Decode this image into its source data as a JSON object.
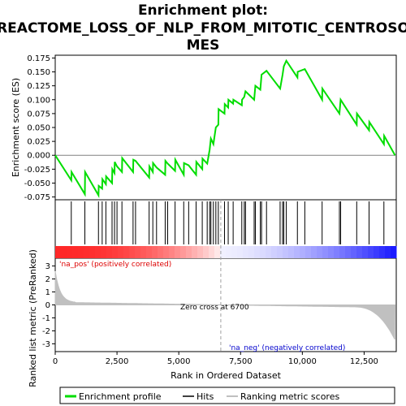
{
  "chart_data": {
    "type": "line",
    "title_lines": [
      "Enrichment plot:",
      "REACTOME_LOSS_OF_NLP_FROM_MITOTIC_CENTROSO",
      "MES"
    ],
    "xlabel": "Rank in Ordered Dataset",
    "ylabel_top": "Enrichment score (ES)",
    "ylabel_bottom": "Ranked list metric (PreRanked)",
    "xlim": [
      0,
      13800
    ],
    "x_ticks": [
      0,
      2500,
      5000,
      7500,
      10000,
      12500
    ],
    "x_tick_labels": [
      "0",
      "2,500",
      "5,000",
      "7,500",
      "10,000",
      "12,500"
    ],
    "es_ylim": [
      -0.08,
      0.18
    ],
    "es_ticks": [
      -0.075,
      -0.05,
      -0.025,
      0.0,
      0.025,
      0.05,
      0.075,
      0.1,
      0.125,
      0.15,
      0.175
    ],
    "es_tick_labels": [
      "-0.075",
      "-0.050",
      "-0.025",
      "0.000",
      "0.025",
      "0.050",
      "0.075",
      "0.100",
      "0.125",
      "0.150",
      "0.175"
    ],
    "metric_ylim": [
      -3.6,
      3.6
    ],
    "metric_ticks": [
      -3,
      -2,
      -1,
      0,
      1,
      2,
      3
    ],
    "metric_tick_labels": [
      "-3",
      "-2",
      "-1",
      "0",
      "1",
      "2",
      "3"
    ],
    "zero_cross": 6700,
    "zero_cross_label": "Zero cross at 6700",
    "pos_label": "'na_pos' (positively correlated)",
    "neg_label": "'na_neg' (negatively correlated)",
    "hits": [
      650,
      1200,
      1750,
      1900,
      2050,
      2300,
      2400,
      2500,
      2700,
      3150,
      3250,
      3800,
      3950,
      4100,
      4450,
      4550,
      4850,
      5200,
      5400,
      5700,
      5950,
      6150,
      6250,
      6300,
      6400,
      6500,
      6600,
      6850,
      7000,
      7200,
      7550,
      7650,
      7700,
      8050,
      8100,
      8300,
      8350,
      8550,
      9100,
      9200,
      9250,
      9350,
      9800,
      10100,
      10800,
      11500,
      11550,
      12200,
      12700,
      13300
    ],
    "es_profile": [
      [
        0,
        0.0
      ],
      [
        650,
        -0.045
      ],
      [
        660,
        -0.03
      ],
      [
        1200,
        -0.07
      ],
      [
        1210,
        -0.03
      ],
      [
        1750,
        -0.072
      ],
      [
        1760,
        -0.055
      ],
      [
        1900,
        -0.06
      ],
      [
        1910,
        -0.043
      ],
      [
        2050,
        -0.052
      ],
      [
        2060,
        -0.038
      ],
      [
        2300,
        -0.05
      ],
      [
        2310,
        -0.025
      ],
      [
        2400,
        -0.032
      ],
      [
        2410,
        -0.012
      ],
      [
        2500,
        -0.02
      ],
      [
        2700,
        -0.03
      ],
      [
        2710,
        -0.005
      ],
      [
        3150,
        -0.03
      ],
      [
        3160,
        -0.008
      ],
      [
        3250,
        -0.01
      ],
      [
        3800,
        -0.04
      ],
      [
        3810,
        -0.02
      ],
      [
        3950,
        -0.03
      ],
      [
        3960,
        -0.014
      ],
      [
        4100,
        -0.022
      ],
      [
        4450,
        -0.035
      ],
      [
        4460,
        -0.01
      ],
      [
        4550,
        -0.015
      ],
      [
        4850,
        -0.028
      ],
      [
        4860,
        -0.008
      ],
      [
        5200,
        -0.035
      ],
      [
        5210,
        -0.014
      ],
      [
        5400,
        -0.018
      ],
      [
        5700,
        -0.035
      ],
      [
        5710,
        -0.012
      ],
      [
        5950,
        -0.025
      ],
      [
        5960,
        -0.006
      ],
      [
        6150,
        -0.015
      ],
      [
        6250,
        0.01
      ],
      [
        6300,
        0.03
      ],
      [
        6400,
        0.02
      ],
      [
        6500,
        0.05
      ],
      [
        6600,
        0.055
      ],
      [
        6610,
        0.083
      ],
      [
        6850,
        0.075
      ],
      [
        6860,
        0.092
      ],
      [
        7000,
        0.086
      ],
      [
        7010,
        0.1
      ],
      [
        7200,
        0.093
      ],
      [
        7210,
        0.1
      ],
      [
        7550,
        0.09
      ],
      [
        7560,
        0.1
      ],
      [
        7650,
        0.105
      ],
      [
        7700,
        0.115
      ],
      [
        8050,
        0.1
      ],
      [
        8100,
        0.125
      ],
      [
        8300,
        0.118
      ],
      [
        8350,
        0.145
      ],
      [
        8550,
        0.152
      ],
      [
        9100,
        0.12
      ],
      [
        9200,
        0.145
      ],
      [
        9250,
        0.16
      ],
      [
        9350,
        0.17
      ],
      [
        9800,
        0.14
      ],
      [
        9810,
        0.15
      ],
      [
        10100,
        0.155
      ],
      [
        10800,
        0.1
      ],
      [
        10810,
        0.12
      ],
      [
        11500,
        0.075
      ],
      [
        11550,
        0.1
      ],
      [
        12200,
        0.055
      ],
      [
        12210,
        0.075
      ],
      [
        12700,
        0.045
      ],
      [
        12710,
        0.06
      ],
      [
        13300,
        0.02
      ],
      [
        13310,
        0.035
      ],
      [
        13750,
        0.0
      ]
    ],
    "legend": [
      "Enrichment profile",
      "Hits",
      "Ranking metric scores"
    ],
    "colors": {
      "profile": "#00dd00",
      "hits": "#000000",
      "metric": "#c0c0c0",
      "zero_line": "#a0a0a0",
      "pos_text": "#dd0000",
      "neg_text": "#0000cc",
      "pos_bar": "#ff0000",
      "neg_bar": "#0000ff"
    }
  }
}
